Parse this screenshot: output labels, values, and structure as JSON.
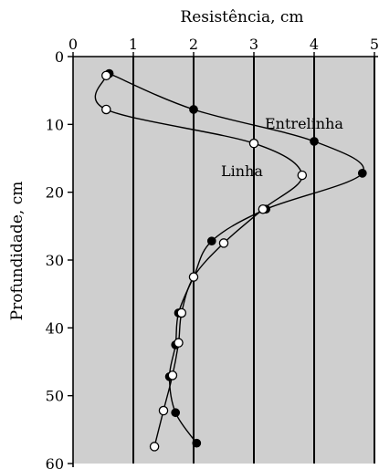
{
  "chart_data": {
    "type": "line",
    "xlabel": "Resistência, cm",
    "ylabel": "Profundidade, cm",
    "xlim": [
      0,
      5
    ],
    "ylim": [
      60,
      0
    ],
    "x_axis_position": "top",
    "y_inverted": true,
    "xticks": [
      0,
      1,
      2,
      3,
      4,
      5
    ],
    "yticks": [
      0,
      10,
      20,
      30,
      40,
      50,
      60
    ],
    "x_tick_labels": [
      "0",
      "1",
      "2",
      "3",
      "4",
      "5"
    ],
    "y_tick_labels": [
      "0",
      "10",
      "20",
      "30",
      "40",
      "50",
      "60"
    ],
    "grid": "vertical",
    "background": "#cfcfcf",
    "series": [
      {
        "name": "Entrelinha",
        "marker": "filled-circle",
        "points": [
          {
            "x": 0.6,
            "y": 2.5
          },
          {
            "x": 2.0,
            "y": 7.8
          },
          {
            "x": 4.0,
            "y": 12.5
          },
          {
            "x": 4.8,
            "y": 17.2
          },
          {
            "x": 3.2,
            "y": 22.5
          },
          {
            "x": 2.3,
            "y": 27.2
          },
          {
            "x": 2.0,
            "y": 32.5
          },
          {
            "x": 1.75,
            "y": 37.8
          },
          {
            "x": 1.7,
            "y": 42.5
          },
          {
            "x": 1.6,
            "y": 47.2
          },
          {
            "x": 1.7,
            "y": 52.5
          },
          {
            "x": 2.05,
            "y": 57.0
          }
        ]
      },
      {
        "name": "Linha",
        "marker": "open-circle",
        "points": [
          {
            "x": 0.55,
            "y": 2.8
          },
          {
            "x": 0.55,
            "y": 7.8
          },
          {
            "x": 3.0,
            "y": 12.8
          },
          {
            "x": 3.8,
            "y": 17.5
          },
          {
            "x": 3.15,
            "y": 22.5
          },
          {
            "x": 2.5,
            "y": 27.5
          },
          {
            "x": 2.0,
            "y": 32.5
          },
          {
            "x": 1.8,
            "y": 37.8
          },
          {
            "x": 1.75,
            "y": 42.2
          },
          {
            "x": 1.65,
            "y": 47.0
          },
          {
            "x": 1.5,
            "y": 52.2
          },
          {
            "x": 1.35,
            "y": 57.5
          }
        ]
      }
    ]
  }
}
